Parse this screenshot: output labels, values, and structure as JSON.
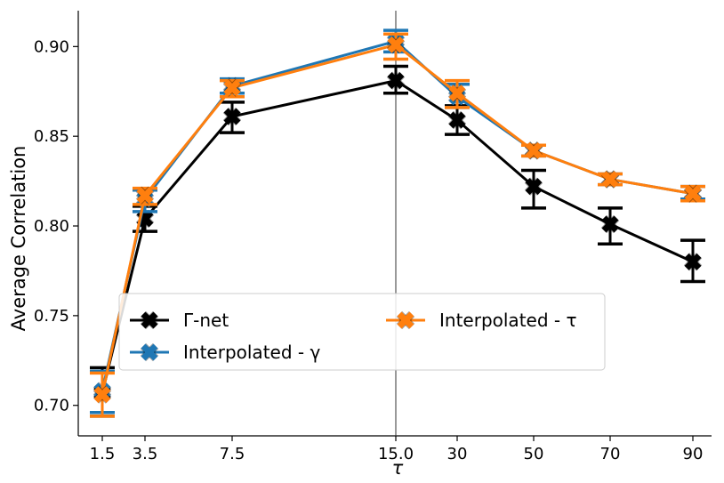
{
  "chart_data": {
    "type": "line",
    "title": "",
    "xlabel": "τ",
    "ylabel": "Average Correlation",
    "categories": [
      "1.5",
      "3.5",
      "7.5",
      "15.0",
      "30",
      "50",
      "70",
      "90"
    ],
    "ylim": [
      0.683,
      0.92
    ],
    "yticks": [
      "0.70",
      "0.75",
      "0.80",
      "0.85",
      "0.90"
    ],
    "ytick_values": [
      0.7,
      0.75,
      0.8,
      0.85,
      0.9
    ],
    "grid": false,
    "vertical_line_at": "15.0",
    "legend": {
      "placement": "lower-center",
      "columns": 2
    },
    "series": [
      {
        "name": "Γ-net",
        "color": "#000000",
        "values": [
          0.707,
          0.804,
          0.861,
          0.881,
          0.859,
          0.822,
          0.801,
          0.78
        ],
        "err_low": [
          0.694,
          0.797,
          0.852,
          0.874,
          0.851,
          0.81,
          0.79,
          0.769
        ],
        "err_high": [
          0.721,
          0.811,
          0.869,
          0.889,
          0.867,
          0.831,
          0.81,
          0.792
        ]
      },
      {
        "name": "Interpolated - γ",
        "color": "#1f77b4",
        "values": [
          0.708,
          0.815,
          0.878,
          0.903,
          0.872,
          0.842,
          0.826,
          0.818
        ],
        "err_low": [
          0.696,
          0.808,
          0.874,
          0.897,
          0.866,
          0.839,
          0.823,
          0.815
        ],
        "err_high": [
          0.719,
          0.82,
          0.882,
          0.909,
          0.879,
          0.845,
          0.829,
          0.822
        ]
      },
      {
        "name": "Interpolated - τ",
        "color": "#ff7f0e",
        "values": [
          0.706,
          0.817,
          0.877,
          0.901,
          0.874,
          0.842,
          0.826,
          0.818
        ],
        "err_low": [
          0.694,
          0.812,
          0.872,
          0.893,
          0.866,
          0.839,
          0.823,
          0.814
        ],
        "err_high": [
          0.718,
          0.821,
          0.881,
          0.907,
          0.881,
          0.845,
          0.829,
          0.822
        ]
      }
    ]
  }
}
